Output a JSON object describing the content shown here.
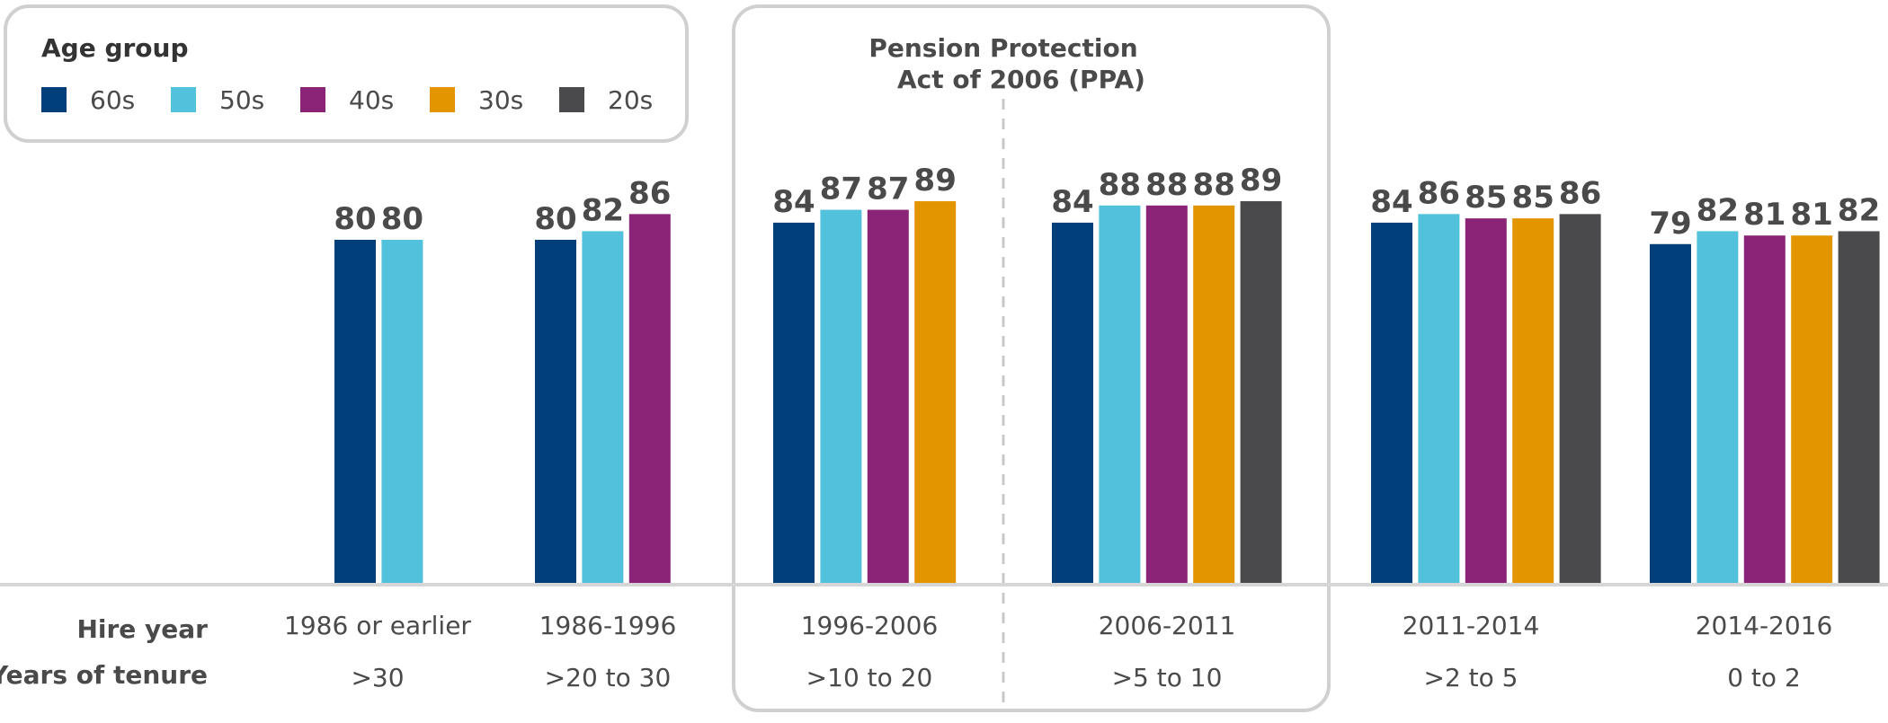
{
  "chart_data": {
    "type": "bar",
    "legend": {
      "title": "Age group",
      "placement": "top-left",
      "entries": [
        "60s",
        "50s",
        "40s",
        "30s",
        "20s"
      ]
    },
    "series": [
      {
        "name": "60s",
        "color": "#003f7a"
      },
      {
        "name": "50s",
        "color": "#52c1dc"
      },
      {
        "name": "40s",
        "color": "#8b2477"
      },
      {
        "name": "30s",
        "color": "#e39500"
      },
      {
        "name": "20s",
        "color": "#4a4a4d"
      }
    ],
    "row_labels": {
      "hire_year": "Hire year",
      "tenure": "Years of tenure"
    },
    "categories": [
      {
        "hire_year": "1986 or earlier",
        "tenure": ">30",
        "values": [
          80,
          80,
          null,
          null,
          null
        ]
      },
      {
        "hire_year": "1986-1996",
        "tenure": ">20 to 30",
        "values": [
          80,
          82,
          86,
          null,
          null
        ]
      },
      {
        "hire_year": "1996-2006",
        "tenure": ">10 to 20",
        "values": [
          84,
          87,
          87,
          89,
          null
        ]
      },
      {
        "hire_year": "2006-2011",
        "tenure": ">5 to 10",
        "values": [
          84,
          88,
          88,
          88,
          89
        ]
      },
      {
        "hire_year": "2011-2014",
        "tenure": ">2 to 5",
        "values": [
          84,
          86,
          85,
          85,
          86
        ]
      },
      {
        "hire_year": "2014-2016",
        "tenure": "0 to 2",
        "values": [
          79,
          82,
          81,
          81,
          82
        ]
      }
    ],
    "ylim": [
      0,
      100
    ],
    "grid": false,
    "annotation": {
      "text_line1": "Pension Protection",
      "text_line2": "Act of 2006 (PPA)",
      "spans": [
        "1996-2006",
        "2006-2011"
      ]
    }
  }
}
